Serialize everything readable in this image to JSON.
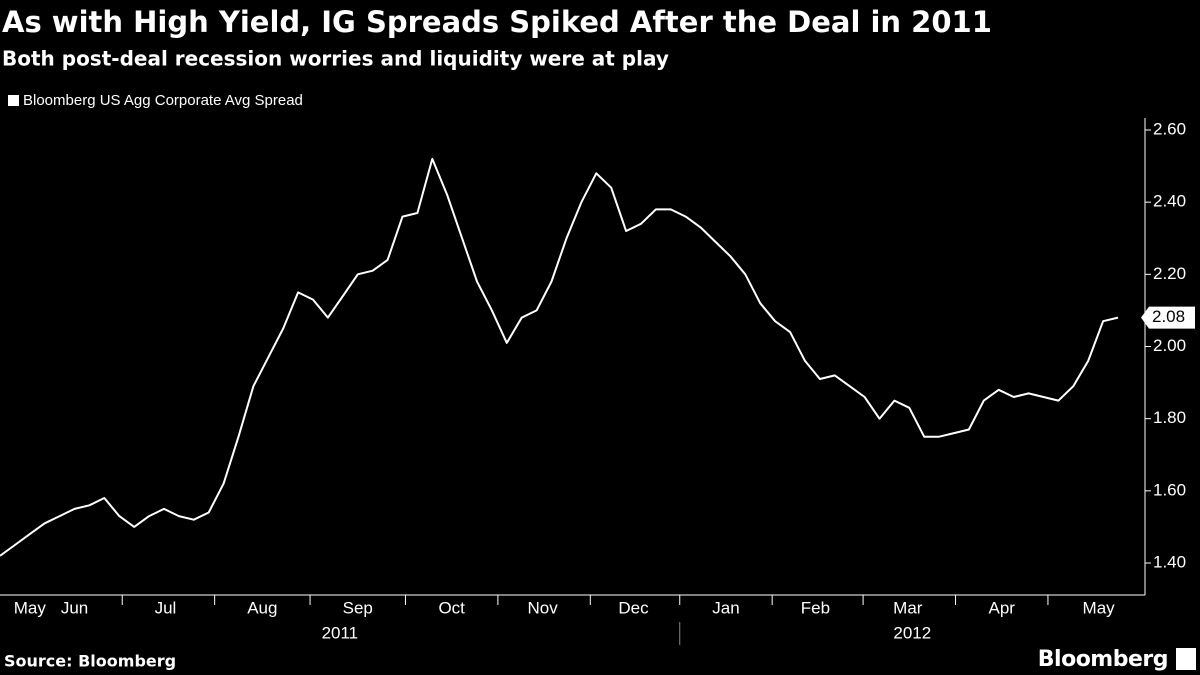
{
  "chart_data": {
    "type": "line",
    "title": "As with High Yield, IG Spreads Spiked After the Deal in 2011",
    "subtitle": "Both post-deal recession worries and liquidity were at play",
    "source": "Source: Bloomberg",
    "logo": "Bloomberg",
    "series": [
      {
        "name": "Bloomberg US Agg Corporate Avg Spread",
        "color": "#ffffff",
        "values": [
          1.42,
          1.45,
          1.48,
          1.51,
          1.53,
          1.55,
          1.56,
          1.58,
          1.53,
          1.5,
          1.53,
          1.55,
          1.53,
          1.52,
          1.54,
          1.62,
          1.75,
          1.89,
          1.97,
          2.05,
          2.15,
          2.13,
          2.08,
          2.14,
          2.2,
          2.21,
          2.24,
          2.36,
          2.37,
          2.52,
          2.42,
          2.3,
          2.18,
          2.1,
          2.01,
          2.08,
          2.1,
          2.18,
          2.3,
          2.4,
          2.48,
          2.44,
          2.32,
          2.34,
          2.38,
          2.38,
          2.36,
          2.33,
          2.29,
          2.25,
          2.2,
          2.12,
          2.07,
          2.04,
          1.96,
          1.91,
          1.92,
          1.89,
          1.86,
          1.8,
          1.85,
          1.83,
          1.75,
          1.75,
          1.76,
          1.77,
          1.85,
          1.88,
          1.86,
          1.87,
          1.86,
          1.85,
          1.89,
          1.96,
          2.07,
          2.08
        ]
      }
    ],
    "xlim": [
      0,
      75
    ],
    "xticks": [
      8.2,
      14.4,
      20.8,
      27.2,
      33.4,
      39.6,
      45.6,
      51.8,
      57.9,
      64.1,
      70.3
    ],
    "month_labels": [
      {
        "value": 2.0,
        "label": "May"
      },
      {
        "value": 5.0,
        "label": "Jun"
      },
      {
        "value": 11.1,
        "label": "Jul"
      },
      {
        "value": 17.6,
        "label": "Aug"
      },
      {
        "value": 24.0,
        "label": "Sep"
      },
      {
        "value": 30.3,
        "label": "Oct"
      },
      {
        "value": 36.4,
        "label": "Nov"
      },
      {
        "value": 42.5,
        "label": "Dec"
      },
      {
        "value": 48.7,
        "label": "Jan"
      },
      {
        "value": 54.7,
        "label": "Feb"
      },
      {
        "value": 60.9,
        "label": "Mar"
      },
      {
        "value": 67.2,
        "label": "Apr"
      },
      {
        "value": 73.7,
        "label": "May"
      }
    ],
    "year_labels": [
      {
        "value": 22.8,
        "label": "2011"
      },
      {
        "value": 61.2,
        "label": "2012"
      }
    ],
    "year_divider": 45.6,
    "ylim": [
      1.35,
      2.65
    ],
    "yticks": [
      {
        "value": 1.4,
        "label": "1.40"
      },
      {
        "value": 1.6,
        "label": "1.60"
      },
      {
        "value": 1.8,
        "label": "1.80"
      },
      {
        "value": 2.0,
        "label": "2.00"
      },
      {
        "value": 2.2,
        "label": "2.20"
      },
      {
        "value": 2.4,
        "label": "2.40"
      },
      {
        "value": 2.6,
        "label": "2.60"
      }
    ],
    "grid": false,
    "last_value_label": true
  }
}
